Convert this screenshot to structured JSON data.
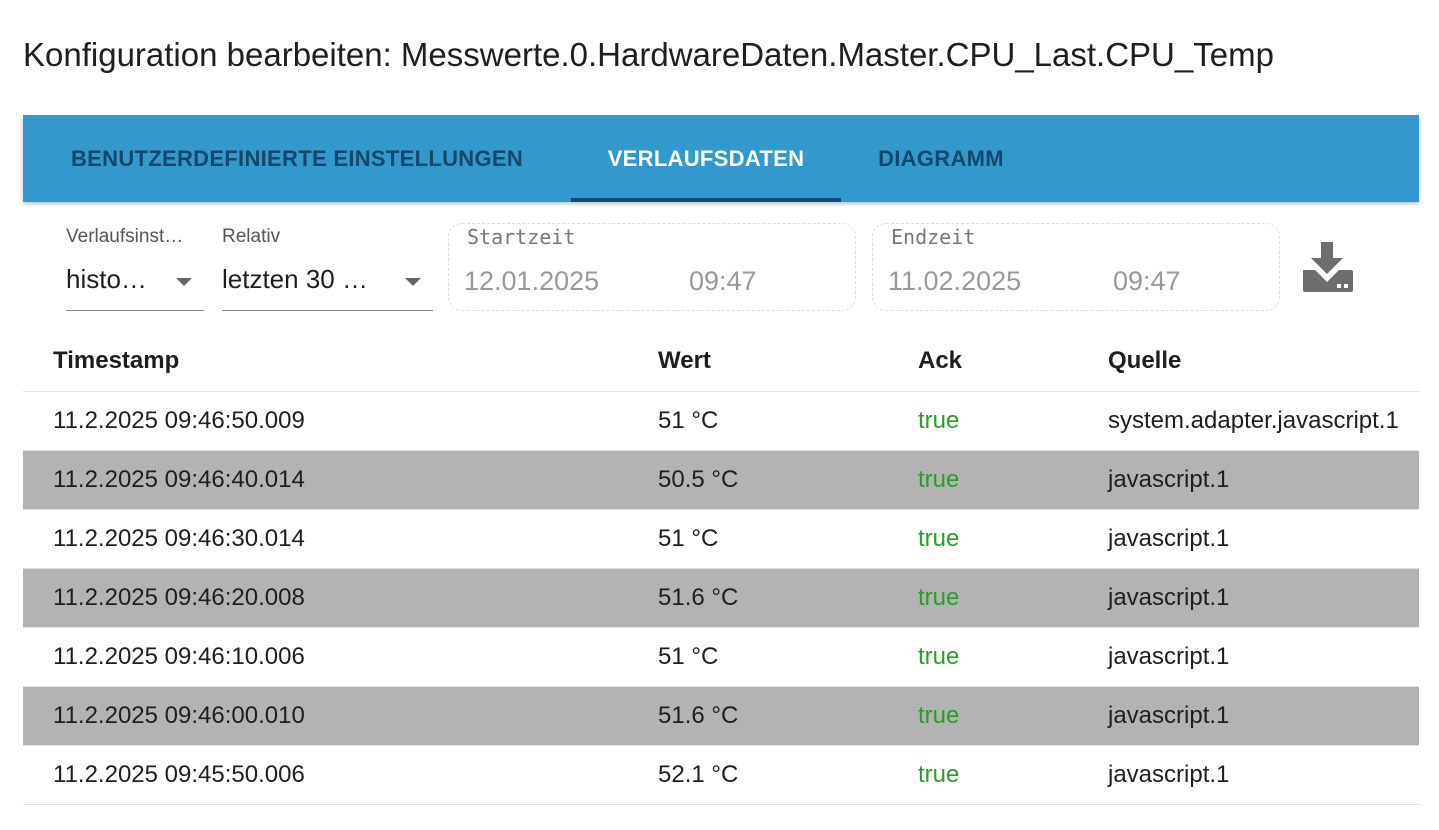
{
  "title": "Konfiguration bearbeiten: Messwerte.0.HardwareDaten.Master.CPU_Last.CPU_Temp",
  "tabs": [
    {
      "label": "BENUTZERDEFINIERTE EINSTELLUNGEN"
    },
    {
      "label": "VERLAUFSDATEN",
      "active": true
    },
    {
      "label": "DIAGRAMM"
    }
  ],
  "filters": {
    "history": {
      "label": "Verlaufsinst…",
      "value": "histo…"
    },
    "relative": {
      "label": "Relativ",
      "value": "letzten 30 …"
    },
    "start": {
      "label": "Startzeit",
      "date": "12.01.2025",
      "time": "09:47"
    },
    "end": {
      "label": "Endzeit",
      "date": "11.02.2025",
      "time": "09:47"
    },
    "download_icon": "download-icon"
  },
  "colors": {
    "tabbar": "#3399cc",
    "ack_true": "#2a9d2a",
    "stripe": "#b3b3b3"
  },
  "table": {
    "headers": [
      "Timestamp",
      "Wert",
      "Ack",
      "Quelle"
    ],
    "rows": [
      [
        "11.2.2025 09:46:50.009",
        "51 °C",
        "true",
        "system.adapter.javascript.1"
      ],
      [
        "11.2.2025 09:46:40.014",
        "50.5 °C",
        "true",
        "javascript.1"
      ],
      [
        "11.2.2025 09:46:30.014",
        "51 °C",
        "true",
        "javascript.1"
      ],
      [
        "11.2.2025 09:46:20.008",
        "51.6 °C",
        "true",
        "javascript.1"
      ],
      [
        "11.2.2025 09:46:10.006",
        "51 °C",
        "true",
        "javascript.1"
      ],
      [
        "11.2.2025 09:46:00.010",
        "51.6 °C",
        "true",
        "javascript.1"
      ],
      [
        "11.2.2025 09:45:50.006",
        "52.1 °C",
        "true",
        "javascript.1"
      ]
    ]
  }
}
